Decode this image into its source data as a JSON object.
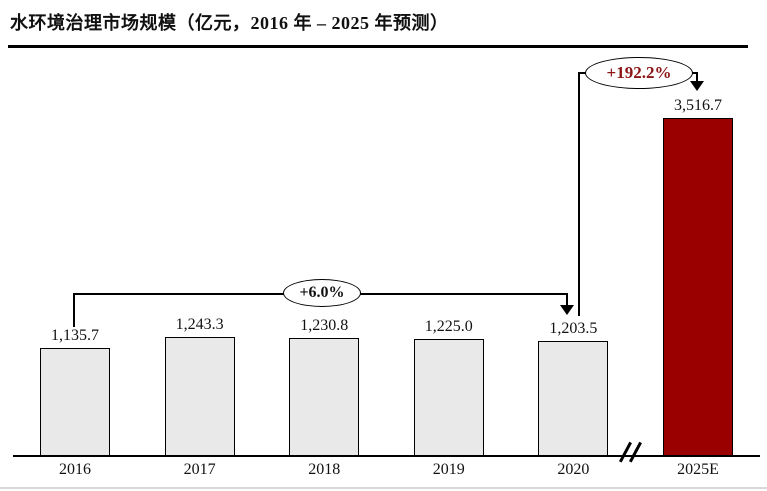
{
  "title": "水环境治理市场规模（亿元，2016 年 – 2025 年预测）",
  "colors": {
    "bar_fill": "#E9E9E9",
    "bar_border": "#000000",
    "highlight_fill": "#9A0000",
    "annotation_red": "#8B1414",
    "text": "#111111",
    "faint_rule": "#D8D8D8"
  },
  "chart_data": {
    "type": "bar",
    "title": "水环境治理市场规模（亿元，2016 年 – 2025 年预测）",
    "unit": "亿元",
    "categories": [
      "2016",
      "2017",
      "2018",
      "2019",
      "2020",
      "2025E"
    ],
    "values": [
      1135.7,
      1243.3,
      1230.8,
      1225.0,
      1203.5,
      3516.7
    ],
    "value_labels": [
      "1,135.7",
      "1,243.3",
      "1,230.8",
      "1,225.0",
      "1,203.5",
      "3,516.7"
    ],
    "highlighted_category": "2025E",
    "ylim": [
      0,
      3700
    ],
    "grid": false,
    "legend": "none",
    "axis_break_between": [
      "2020",
      "2025E"
    ],
    "annotations": [
      {
        "label": "+6.0%",
        "from": "2016",
        "to": "2020"
      },
      {
        "label": "+192.2%",
        "from": "2020",
        "to": "2025E"
      }
    ]
  }
}
